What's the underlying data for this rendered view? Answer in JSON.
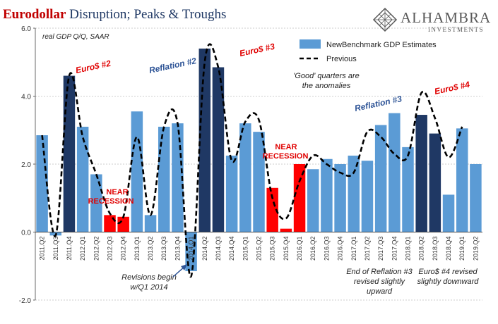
{
  "header": {
    "title_part1": "Eurodollar",
    "title_part2": " Disruption; Peaks & Troughs",
    "logo_name": "ALHAMBRA",
    "logo_sub": "INVESTMENTS"
  },
  "colors": {
    "light_bar": "#5b9bd5",
    "dark_bar": "#1f3864",
    "red_bar": "#ff0000",
    "line": "#000000",
    "title_red": "#c00000"
  },
  "chart_data": {
    "type": "bar",
    "subtitle": "real GDP Q/Q, SAAR",
    "ylim": [
      -2.0,
      6.0
    ],
    "yticks": [
      -2.0,
      0.0,
      2.0,
      4.0,
      6.0
    ],
    "ytick_labels": [
      "-2.0",
      "0.0",
      "2.0",
      "4.0",
      "6.0"
    ],
    "grid": true,
    "legend_position": "top-right",
    "categories": [
      "2011.Q2",
      "2011.Q3",
      "2011.Q4",
      "2012.Q1",
      "2012.Q2",
      "2012.Q3",
      "2012.Q4",
      "2013.Q1",
      "2013.Q2",
      "2013.Q3",
      "2013.Q4",
      "2014.Q1",
      "2014.Q2",
      "2014.Q3",
      "2014.Q4",
      "2015.Q1",
      "2015.Q2",
      "2015.Q3",
      "2015.Q4",
      "2016.Q1",
      "2016.Q2",
      "2016.Q3",
      "2016.Q4",
      "2017.Q1",
      "2017.Q2",
      "2017.Q3",
      "2017.Q4",
      "2018.Q1",
      "2018.Q2",
      "2018.Q3",
      "2018.Q4",
      "2019.Q1",
      "2019.Q2"
    ],
    "bar_kind": [
      "light",
      "light",
      "dark",
      "light",
      "light",
      "red",
      "red",
      "light",
      "light",
      "light",
      "light",
      "light",
      "dark",
      "dark",
      "light",
      "light",
      "light",
      "red",
      "red",
      "red",
      "light",
      "light",
      "light",
      "light",
      "light",
      "light",
      "light",
      "light",
      "dark",
      "dark",
      "light",
      "light",
      "light"
    ],
    "series": [
      {
        "name": "NewBenchmark GDP Estimates",
        "values": [
          2.85,
          -0.1,
          4.6,
          3.1,
          1.7,
          0.5,
          0.45,
          3.55,
          0.5,
          3.1,
          3.2,
          -1.15,
          5.4,
          4.85,
          2.25,
          3.2,
          2.95,
          1.3,
          0.1,
          2.0,
          1.85,
          2.15,
          2.0,
          2.25,
          2.1,
          3.15,
          3.5,
          2.5,
          3.45,
          2.9,
          1.1,
          3.05,
          2.0
        ]
      },
      {
        "name": "Previous",
        "values": [
          2.85,
          -0.1,
          4.6,
          2.8,
          1.7,
          0.55,
          0.45,
          2.8,
          0.5,
          3.1,
          3.2,
          -1.3,
          5.0,
          4.85,
          2.1,
          3.25,
          3.3,
          1.0,
          0.4,
          1.5,
          2.25,
          2.0,
          1.75,
          1.75,
          2.95,
          2.8,
          2.3,
          2.25,
          4.1,
          3.35,
          2.2,
          3.1,
          null
        ]
      }
    ],
    "annotations": {
      "euro2": "Euro$ #2",
      "reflation2": "Reflation #2",
      "euro3": "Euro$ #3",
      "reflation3": "Reflation #3",
      "euro4": "Euro$ #4",
      "near1": "NEAR",
      "recession1": "RECESSION",
      "near2": "NEAR",
      "recession2": "RECESSION",
      "good_line1": "'Good' quarters are",
      "good_line2": "the anomalies",
      "revisions_line1": "Revisions begin",
      "revisions_line2": "w/Q1 2014",
      "endref_line1": "End of Reflation #3",
      "endref_line2": "revised slightly",
      "endref_line3": "upward",
      "euro4rev_line1": "Euro$ #4 revised",
      "euro4rev_line2": "slightly downward"
    }
  }
}
